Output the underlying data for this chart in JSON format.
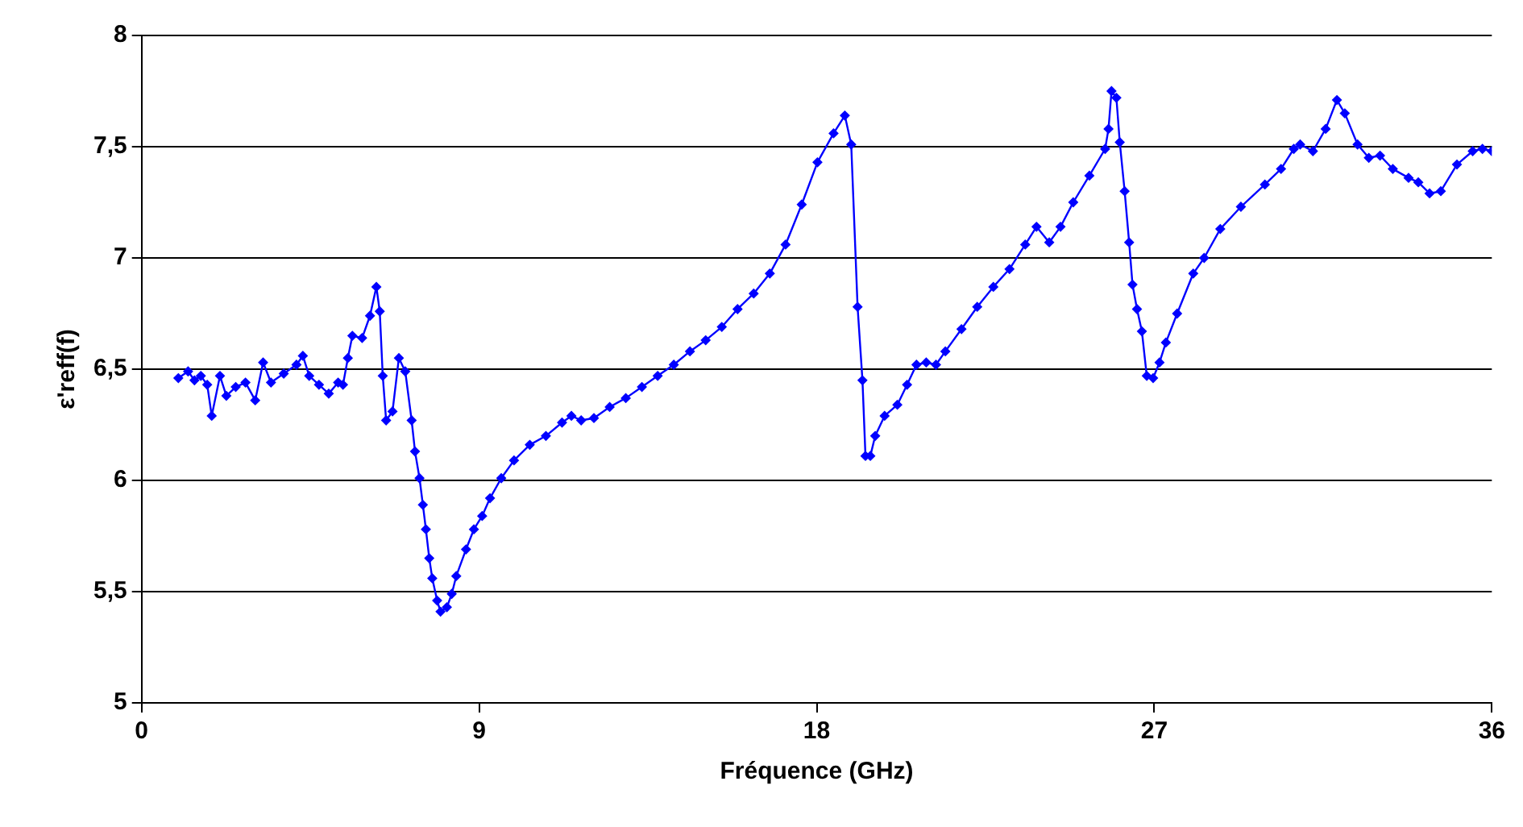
{
  "chart_data": {
    "type": "line",
    "xlabel": "Fréquence (GHz)",
    "ylabel": "ε'reff(f)",
    "xlim": [
      0,
      36
    ],
    "xticks": [
      0,
      9,
      18,
      27,
      36
    ],
    "ylim": [
      5,
      8
    ],
    "yticks": [
      5,
      {
        "value": 5.5,
        "label": "5,5"
      },
      6,
      {
        "value": 6.5,
        "label": "6,5"
      },
      7,
      {
        "value": 7.5,
        "label": "7,5"
      },
      8
    ],
    "grid": "y",
    "legend": false,
    "marker": "diamond",
    "line_style": "solid",
    "x": [
      0.98,
      1.24,
      1.41,
      1.58,
      1.75,
      1.87,
      2.09,
      2.26,
      2.51,
      2.77,
      3.03,
      3.24,
      3.45,
      3.79,
      4.13,
      4.3,
      4.47,
      4.73,
      4.99,
      5.24,
      5.37,
      5.5,
      5.62,
      5.88,
      6.09,
      6.26,
      6.35,
      6.43,
      6.52,
      6.69,
      6.86,
      7.03,
      7.2,
      7.29,
      7.41,
      7.5,
      7.58,
      7.67,
      7.75,
      7.88,
      7.97,
      8.14,
      8.27,
      8.39,
      8.65,
      8.86,
      9.08,
      9.29,
      9.59,
      9.93,
      10.35,
      10.78,
      11.21,
      11.46,
      11.72,
      12.06,
      12.48,
      12.91,
      13.34,
      13.76,
      14.19,
      14.62,
      15.04,
      15.47,
      15.89,
      16.32,
      16.75,
      17.17,
      17.6,
      18.02,
      18.45,
      18.75,
      18.92,
      19.09,
      19.22,
      19.3,
      19.43,
      19.56,
      19.81,
      20.15,
      20.41,
      20.66,
      20.92,
      21.18,
      21.43,
      21.86,
      22.28,
      22.71,
      23.14,
      23.56,
      23.86,
      24.2,
      24.5,
      24.84,
      25.27,
      25.69,
      25.78,
      25.86,
      25.99,
      26.08,
      26.21,
      26.33,
      26.42,
      26.54,
      26.67,
      26.8,
      26.97,
      27.14,
      27.31,
      27.61,
      28.04,
      28.33,
      28.76,
      29.31,
      29.95,
      30.38,
      30.72,
      30.89,
      31.23,
      31.57,
      31.87,
      32.08,
      32.42,
      32.72,
      33.02,
      33.36,
      33.78,
      34.04,
      34.34,
      34.64,
      35.07,
      35.49,
      35.75,
      36
    ],
    "series": [
      {
        "color": "#0000ff",
        "values": [
          6.46,
          6.49,
          6.45,
          6.47,
          6.43,
          6.29,
          6.47,
          6.38,
          6.42,
          6.44,
          6.36,
          6.53,
          6.44,
          6.48,
          6.52,
          6.56,
          6.47,
          6.43,
          6.39,
          6.44,
          6.43,
          6.55,
          6.65,
          6.64,
          6.74,
          6.87,
          6.76,
          6.47,
          6.27,
          6.31,
          6.55,
          6.49,
          6.27,
          6.13,
          6.01,
          5.89,
          5.78,
          5.65,
          5.56,
          5.46,
          5.41,
          5.43,
          5.49,
          5.57,
          5.69,
          5.78,
          5.84,
          5.92,
          6.01,
          6.09,
          6.16,
          6.2,
          6.26,
          6.29,
          6.27,
          6.28,
          6.33,
          6.37,
          6.42,
          6.47,
          6.52,
          6.58,
          6.63,
          6.69,
          6.77,
          6.84,
          6.93,
          7.06,
          7.24,
          7.43,
          7.56,
          7.64,
          7.51,
          6.78,
          6.45,
          6.11,
          6.11,
          6.2,
          6.29,
          6.34,
          6.43,
          6.52,
          6.53,
          6.52,
          6.58,
          6.68,
          6.78,
          6.87,
          6.95,
          7.06,
          7.14,
          7.07,
          7.14,
          7.25,
          7.37,
          7.49,
          7.58,
          7.75,
          7.72,
          7.52,
          7.3,
          7.07,
          6.88,
          6.77,
          6.67,
          6.47,
          6.46,
          6.53,
          6.62,
          6.75,
          6.93,
          7.0,
          7.13,
          7.23,
          7.33,
          7.4,
          7.49,
          7.51,
          7.48,
          7.58,
          7.71,
          7.65,
          7.51,
          7.45,
          7.46,
          7.4,
          7.36,
          7.34,
          7.29,
          7.3,
          7.42,
          7.48,
          7.49,
          7.48
        ]
      }
    ]
  }
}
